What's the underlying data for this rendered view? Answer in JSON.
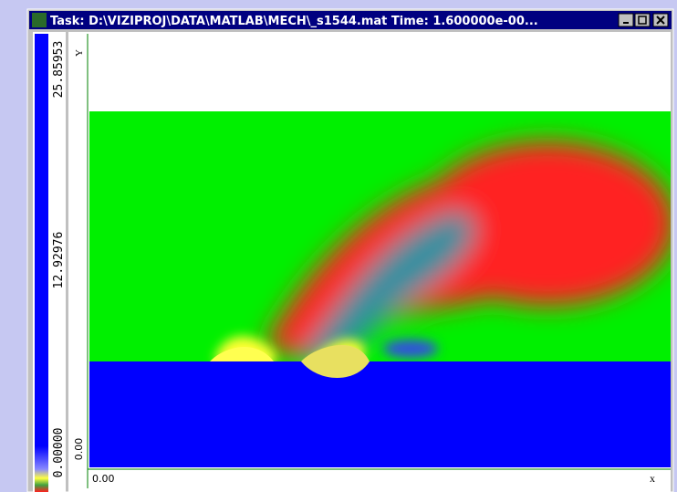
{
  "window": {
    "title": "Task: D:\\VIZIPROJ\\DATA\\MATLAB\\MECH\\_s1544.mat Time: 1.600000e-00..."
  },
  "colorbar": {
    "labels": [
      "25.85953",
      "12.92976",
      "0.00000"
    ]
  },
  "axes": {
    "y_label": "Y",
    "y_origin": "0.00",
    "x_origin": "0.00",
    "x_label": "x"
  }
}
